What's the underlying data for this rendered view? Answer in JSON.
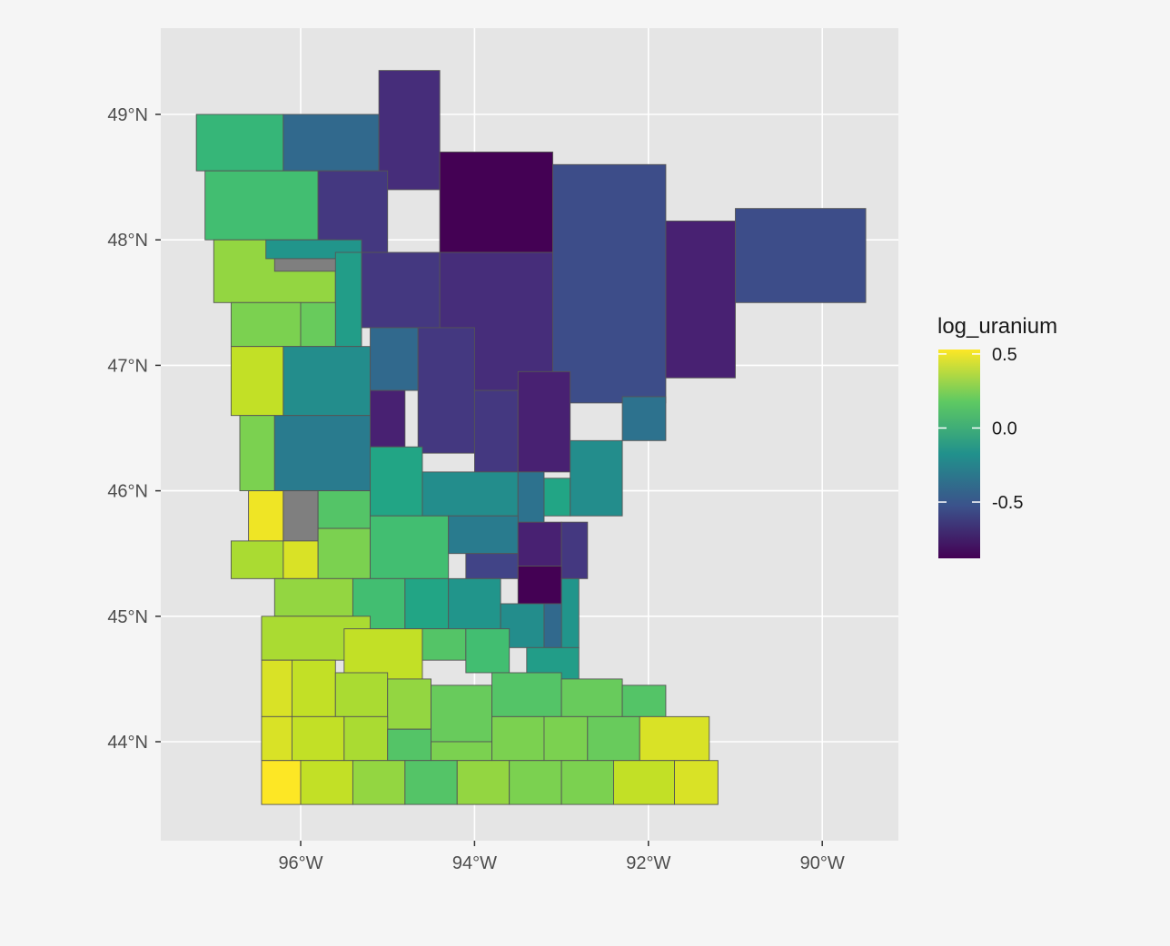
{
  "map": {
    "region": "Minnesota counties",
    "axes": {
      "x_ticks": [
        "96°W",
        "94°W",
        "92°W",
        "90°W"
      ],
      "y_ticks": [
        "49°N",
        "48°N",
        "47°N",
        "46°N",
        "45°N",
        "44°N"
      ],
      "lon_range": [
        -97.6,
        -89.1
      ],
      "lat_range": [
        43.3,
        49.7
      ]
    },
    "legend": {
      "title": "log_uranium",
      "labels": [
        "0.5",
        "0.0",
        "-0.5"
      ],
      "range": [
        -0.88,
        0.53
      ],
      "colormap": "viridis",
      "placement": "right"
    },
    "colors": {
      "panel_background": "#e5e5e5",
      "page_background": "#f5f5f5",
      "gridline": "#ffffff",
      "county_border": "#555555",
      "missing": "#7f7f7f"
    },
    "counties": [
      {
        "lon": [
          -97.2,
          -96.2
        ],
        "lat": [
          48.55,
          49.0
        ],
        "value": 0.05
      },
      {
        "lon": [
          -96.2,
          -95.1
        ],
        "lat": [
          48.55,
          49.0
        ],
        "value": -0.4
      },
      {
        "lon": [
          -95.1,
          -94.4
        ],
        "lat": [
          48.4,
          49.35
        ],
        "value": -0.7
      },
      {
        "lon": [
          -97.1,
          -95.8
        ],
        "lat": [
          48.0,
          48.55
        ],
        "value": 0.1
      },
      {
        "lon": [
          -95.8,
          -95.0
        ],
        "lat": [
          47.9,
          48.55
        ],
        "value": -0.65
      },
      {
        "lon": [
          -94.4,
          -93.1
        ],
        "lat": [
          47.9,
          48.7
        ],
        "value": -0.88
      },
      {
        "lon": [
          -93.1,
          -91.8
        ],
        "lat": [
          46.7,
          48.6
        ],
        "value": -0.55
      },
      {
        "lon": [
          -91.8,
          -91.0
        ],
        "lat": [
          46.9,
          48.15
        ],
        "value": -0.75
      },
      {
        "lon": [
          -91.0,
          -89.5
        ],
        "lat": [
          47.5,
          48.25
        ],
        "value": -0.55
      },
      {
        "lon": [
          -97.0,
          -95.6
        ],
        "lat": [
          47.5,
          48.0
        ],
        "value": 0.3
      },
      {
        "lon": [
          -96.4,
          -95.3
        ],
        "lat": [
          47.85,
          48.0
        ],
        "value": -0.15
      },
      {
        "lon": [
          -96.3,
          -95.5
        ],
        "lat": [
          47.75,
          47.85
        ],
        "value": null
      },
      {
        "lon": [
          -95.3,
          -94.4
        ],
        "lat": [
          47.3,
          47.9
        ],
        "value": -0.65
      },
      {
        "lon": [
          -94.4,
          -93.1
        ],
        "lat": [
          46.75,
          47.9
        ],
        "value": -0.7
      },
      {
        "lon": [
          -95.6,
          -95.3
        ],
        "lat": [
          47.15,
          47.9
        ],
        "value": -0.1
      },
      {
        "lon": [
          -96.8,
          -96.0
        ],
        "lat": [
          47.15,
          47.5
        ],
        "value": 0.25
      },
      {
        "lon": [
          -96.0,
          -95.6
        ],
        "lat": [
          47.15,
          47.5
        ],
        "value": 0.2
      },
      {
        "lon": [
          -96.8,
          -96.2
        ],
        "lat": [
          46.6,
          47.15
        ],
        "value": 0.4
      },
      {
        "lon": [
          -96.2,
          -95.2
        ],
        "lat": [
          46.6,
          47.15
        ],
        "value": -0.2
      },
      {
        "lon": [
          -95.2,
          -94.65
        ],
        "lat": [
          46.8,
          47.3
        ],
        "value": -0.4
      },
      {
        "lon": [
          -94.65,
          -94.0
        ],
        "lat": [
          46.3,
          47.3
        ],
        "value": -0.65
      },
      {
        "lon": [
          -95.2,
          -94.8
        ],
        "lat": [
          46.35,
          46.8
        ],
        "value": -0.75
      },
      {
        "lon": [
          -92.3,
          -91.8
        ],
        "lat": [
          46.4,
          46.75
        ],
        "value": -0.35
      },
      {
        "lon": [
          -96.7,
          -96.3
        ],
        "lat": [
          46.0,
          46.6
        ],
        "value": 0.25
      },
      {
        "lon": [
          -96.3,
          -95.2
        ],
        "lat": [
          46.0,
          46.6
        ],
        "value": -0.3
      },
      {
        "lon": [
          -94.0,
          -93.5
        ],
        "lat": [
          46.15,
          46.8
        ],
        "value": -0.65
      },
      {
        "lon": [
          -93.5,
          -92.9
        ],
        "lat": [
          46.15,
          46.95
        ],
        "value": -0.75
      },
      {
        "lon": [
          -92.9,
          -92.3
        ],
        "lat": [
          45.8,
          46.4
        ],
        "value": -0.2
      },
      {
        "lon": [
          -96.6,
          -96.2
        ],
        "lat": [
          45.6,
          46.0
        ],
        "value": 0.5
      },
      {
        "lon": [
          -96.2,
          -95.8
        ],
        "lat": [
          45.6,
          46.0
        ],
        "value": null
      },
      {
        "lon": [
          -95.8,
          -95.2
        ],
        "lat": [
          45.7,
          46.0
        ],
        "value": 0.15
      },
      {
        "lon": [
          -95.2,
          -94.6
        ],
        "lat": [
          45.8,
          46.35
        ],
        "value": -0.05
      },
      {
        "lon": [
          -94.6,
          -93.5
        ],
        "lat": [
          45.8,
          46.15
        ],
        "value": -0.2
      },
      {
        "lon": [
          -93.5,
          -93.2
        ],
        "lat": [
          45.5,
          46.15
        ],
        "value": -0.35
      },
      {
        "lon": [
          -93.2,
          -92.9
        ],
        "lat": [
          45.8,
          46.1
        ],
        "value": -0.05
      },
      {
        "lon": [
          -96.8,
          -96.2
        ],
        "lat": [
          45.3,
          45.6
        ],
        "value": 0.35
      },
      {
        "lon": [
          -96.2,
          -95.8
        ],
        "lat": [
          45.3,
          45.6
        ],
        "value": 0.45
      },
      {
        "lon": [
          -95.8,
          -95.2
        ],
        "lat": [
          45.3,
          45.7
        ],
        "value": 0.25
      },
      {
        "lon": [
          -95.2,
          -94.3
        ],
        "lat": [
          45.3,
          45.8
        ],
        "value": 0.1
      },
      {
        "lon": [
          -94.3,
          -93.5
        ],
        "lat": [
          45.5,
          45.8
        ],
        "value": -0.3
      },
      {
        "lon": [
          -94.1,
          -93.5
        ],
        "lat": [
          45.3,
          45.5
        ],
        "value": -0.6
      },
      {
        "lon": [
          -93.5,
          -93.0
        ],
        "lat": [
          45.4,
          45.75
        ],
        "value": -0.75
      },
      {
        "lon": [
          -93.0,
          -92.7
        ],
        "lat": [
          45.3,
          45.75
        ],
        "value": -0.65
      },
      {
        "lon": [
          -93.5,
          -93.0
        ],
        "lat": [
          45.1,
          45.4
        ],
        "value": -0.88
      },
      {
        "lon": [
          -93.0,
          -92.8
        ],
        "lat": [
          44.75,
          45.3
        ],
        "value": -0.15
      },
      {
        "lon": [
          -96.3,
          -95.4
        ],
        "lat": [
          45.0,
          45.3
        ],
        "value": 0.3
      },
      {
        "lon": [
          -95.4,
          -94.8
        ],
        "lat": [
          44.9,
          45.3
        ],
        "value": 0.1
      },
      {
        "lon": [
          -94.8,
          -94.3
        ],
        "lat": [
          44.9,
          45.3
        ],
        "value": -0.05
      },
      {
        "lon": [
          -94.3,
          -93.7
        ],
        "lat": [
          44.85,
          45.3
        ],
        "value": -0.15
      },
      {
        "lon": [
          -93.7,
          -93.2
        ],
        "lat": [
          44.75,
          45.1
        ],
        "value": -0.2
      },
      {
        "lon": [
          -93.2,
          -93.0
        ],
        "lat": [
          44.75,
          45.1
        ],
        "value": -0.4
      },
      {
        "lon": [
          -93.4,
          -92.8
        ],
        "lat": [
          44.45,
          44.75
        ],
        "value": -0.1
      },
      {
        "lon": [
          -96.45,
          -95.2
        ],
        "lat": [
          44.65,
          45.0
        ],
        "value": 0.35
      },
      {
        "lon": [
          -95.5,
          -94.6
        ],
        "lat": [
          44.45,
          44.9
        ],
        "value": 0.4
      },
      {
        "lon": [
          -94.6,
          -94.1
        ],
        "lat": [
          44.65,
          44.9
        ],
        "value": 0.15
      },
      {
        "lon": [
          -94.1,
          -93.6
        ],
        "lat": [
          44.55,
          44.9
        ],
        "value": 0.1
      },
      {
        "lon": [
          -96.45,
          -96.1
        ],
        "lat": [
          44.2,
          44.65
        ],
        "value": 0.45
      },
      {
        "lon": [
          -96.1,
          -95.6
        ],
        "lat": [
          44.2,
          44.65
        ],
        "value": 0.4
      },
      {
        "lon": [
          -95.6,
          -95.0
        ],
        "lat": [
          44.2,
          44.55
        ],
        "value": 0.35
      },
      {
        "lon": [
          -95.0,
          -94.5
        ],
        "lat": [
          44.1,
          44.5
        ],
        "value": 0.3
      },
      {
        "lon": [
          -94.5,
          -93.8
        ],
        "lat": [
          44.0,
          44.45
        ],
        "value": 0.2
      },
      {
        "lon": [
          -93.8,
          -93.0
        ],
        "lat": [
          44.2,
          44.55
        ],
        "value": 0.15
      },
      {
        "lon": [
          -93.0,
          -92.3
        ],
        "lat": [
          44.2,
          44.5
        ],
        "value": 0.2
      },
      {
        "lon": [
          -92.3,
          -91.8
        ],
        "lat": [
          44.2,
          44.45
        ],
        "value": 0.15
      },
      {
        "lon": [
          -96.45,
          -96.1
        ],
        "lat": [
          43.85,
          44.2
        ],
        "value": 0.45
      },
      {
        "lon": [
          -96.1,
          -95.5
        ],
        "lat": [
          43.85,
          44.2
        ],
        "value": 0.4
      },
      {
        "lon": [
          -95.5,
          -95.0
        ],
        "lat": [
          43.85,
          44.2
        ],
        "value": 0.35
      },
      {
        "lon": [
          -95.0,
          -94.5
        ],
        "lat": [
          43.85,
          44.1
        ],
        "value": 0.15
      },
      {
        "lon": [
          -94.5,
          -93.8
        ],
        "lat": [
          43.85,
          44.0
        ],
        "value": 0.25
      },
      {
        "lon": [
          -93.8,
          -93.2
        ],
        "lat": [
          43.85,
          44.2
        ],
        "value": 0.25
      },
      {
        "lon": [
          -93.2,
          -92.7
        ],
        "lat": [
          43.85,
          44.2
        ],
        "value": 0.25
      },
      {
        "lon": [
          -92.7,
          -92.1
        ],
        "lat": [
          43.85,
          44.2
        ],
        "value": 0.2
      },
      {
        "lon": [
          -92.1,
          -91.3
        ],
        "lat": [
          43.85,
          44.2
        ],
        "value": 0.45
      },
      {
        "lon": [
          -96.45,
          -96.0
        ],
        "lat": [
          43.5,
          43.85
        ],
        "value": 0.53
      },
      {
        "lon": [
          -96.0,
          -95.4
        ],
        "lat": [
          43.5,
          43.85
        ],
        "value": 0.4
      },
      {
        "lon": [
          -95.4,
          -94.8
        ],
        "lat": [
          43.5,
          43.85
        ],
        "value": 0.3
      },
      {
        "lon": [
          -94.8,
          -94.2
        ],
        "lat": [
          43.5,
          43.85
        ],
        "value": 0.15
      },
      {
        "lon": [
          -94.2,
          -93.6
        ],
        "lat": [
          43.5,
          43.85
        ],
        "value": 0.3
      },
      {
        "lon": [
          -93.6,
          -93.0
        ],
        "lat": [
          43.5,
          43.85
        ],
        "value": 0.25
      },
      {
        "lon": [
          -93.0,
          -92.4
        ],
        "lat": [
          43.5,
          43.85
        ],
        "value": 0.25
      },
      {
        "lon": [
          -92.4,
          -91.7
        ],
        "lat": [
          43.5,
          43.85
        ],
        "value": 0.4
      },
      {
        "lon": [
          -91.7,
          -91.2
        ],
        "lat": [
          43.5,
          43.85
        ],
        "value": 0.45
      }
    ]
  }
}
